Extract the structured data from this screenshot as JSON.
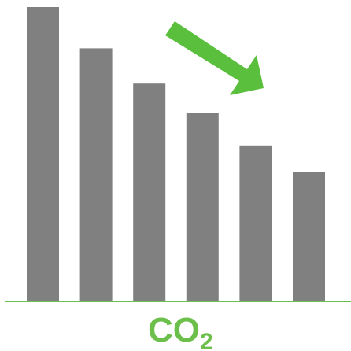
{
  "chart_data": {
    "type": "bar",
    "values": [
      100,
      86,
      74,
      64,
      53,
      44
    ],
    "ylim": [
      0,
      100
    ],
    "xlabel": "CO",
    "xlabel_subscript": "2",
    "trend": "down",
    "legend": "none",
    "grid": false
  },
  "colors": {
    "bar": "#808080",
    "axis": "#6cbf4a",
    "label": "#6cbf4a",
    "arrow": "#5abf3c"
  },
  "icons": {
    "trend": "arrow-down-right-icon"
  }
}
